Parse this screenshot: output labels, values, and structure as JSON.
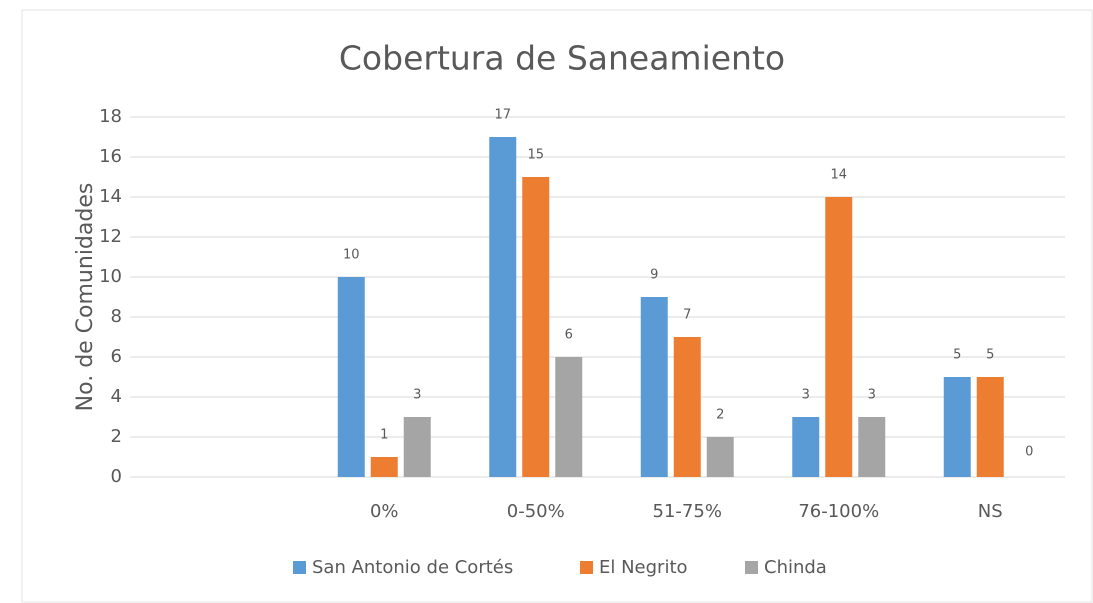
{
  "chart_data": {
    "type": "bar",
    "title": "Cobertura de Saneamiento",
    "ylabel": "No. de Comunidades",
    "categories": [
      null,
      "0%",
      "0-50%",
      "51-75%",
      "76-100%",
      "NS"
    ],
    "series": [
      {
        "name": "San Antonio de Cortés",
        "color": "#5b9bd5",
        "values": [
          null,
          10,
          17,
          9,
          3,
          5
        ]
      },
      {
        "name": "El Negrito",
        "color": "#ed7d31",
        "values": [
          null,
          1,
          15,
          7,
          14,
          5
        ]
      },
      {
        "name": "Chinda",
        "color": "#a5a5a5",
        "values": [
          null,
          3,
          6,
          2,
          3,
          0
        ]
      }
    ],
    "ylim": [
      0,
      18
    ],
    "yticks": [
      0,
      2,
      4,
      6,
      8,
      10,
      12,
      14,
      16,
      18
    ],
    "grid": true,
    "legend": "bottom"
  }
}
